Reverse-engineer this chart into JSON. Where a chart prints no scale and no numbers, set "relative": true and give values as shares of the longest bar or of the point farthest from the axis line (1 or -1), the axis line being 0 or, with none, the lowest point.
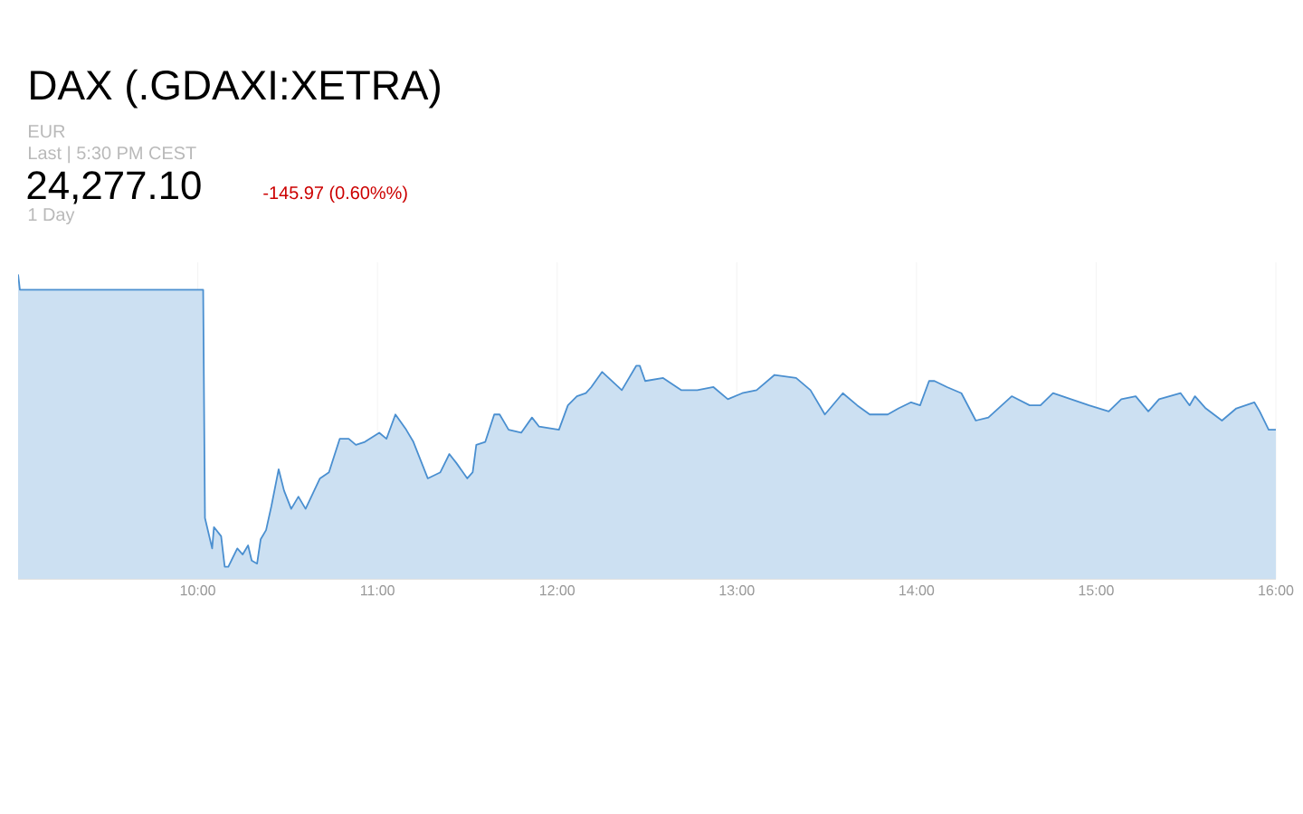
{
  "chart_data": {
    "type": "area",
    "title": "DAX (.GDAXI:XETRA)",
    "annotations": [
      "EUR",
      "Last | 5:30 PM CEST",
      "24,277.10",
      "-145.97 (0.60%%)",
      "1 Day"
    ],
    "relative": true,
    "color": "#4a8fd0",
    "grid": "x",
    "xlim": [
      9,
      16
    ],
    "xticks": [
      {
        "value": 10,
        "label": "10:00"
      },
      {
        "value": 11,
        "label": "11:00"
      },
      {
        "value": 12,
        "label": "12:00"
      },
      {
        "value": 13,
        "label": "13:00"
      },
      {
        "value": 14,
        "label": "14:00"
      },
      {
        "value": 15,
        "label": "15:00"
      },
      {
        "value": 16,
        "label": "16:00"
      }
    ],
    "x": [
      9.0,
      9.01,
      10.03,
      10.04,
      10.08,
      10.09,
      10.13,
      10.15,
      10.17,
      10.22,
      10.25,
      10.28,
      10.3,
      10.33,
      10.35,
      10.38,
      10.41,
      10.45,
      10.48,
      10.52,
      10.56,
      10.6,
      10.68,
      10.73,
      10.79,
      10.84,
      10.88,
      10.93,
      11.01,
      11.05,
      11.1,
      11.16,
      11.2,
      11.28,
      11.35,
      11.4,
      11.44,
      11.5,
      11.53,
      11.55,
      11.6,
      11.65,
      11.68,
      11.73,
      11.8,
      11.86,
      11.9,
      12.01,
      12.06,
      12.11,
      12.16,
      12.19,
      12.25,
      12.36,
      12.44,
      12.46,
      12.49,
      12.59,
      12.69,
      12.78,
      12.87,
      12.95,
      13.03,
      13.11,
      13.21,
      13.33,
      13.41,
      13.49,
      13.59,
      13.67,
      13.74,
      13.84,
      13.9,
      13.97,
      14.02,
      14.07,
      14.1,
      14.17,
      14.25,
      14.33,
      14.4,
      14.53,
      14.63,
      14.69,
      14.76,
      14.86,
      14.96,
      15.07,
      15.14,
      15.22,
      15.29,
      15.35,
      15.47,
      15.52,
      15.55,
      15.61,
      15.7,
      15.78,
      15.88,
      15.91,
      15.96,
      16.0
    ],
    "values": [
      1.0,
      0.95,
      0.95,
      0.2,
      0.1,
      0.17,
      0.14,
      0.04,
      0.04,
      0.1,
      0.08,
      0.11,
      0.06,
      0.05,
      0.13,
      0.16,
      0.24,
      0.36,
      0.29,
      0.23,
      0.27,
      0.23,
      0.33,
      0.35,
      0.46,
      0.46,
      0.44,
      0.45,
      0.48,
      0.46,
      0.54,
      0.49,
      0.45,
      0.33,
      0.35,
      0.41,
      0.38,
      0.33,
      0.35,
      0.44,
      0.45,
      0.54,
      0.54,
      0.49,
      0.48,
      0.53,
      0.5,
      0.49,
      0.57,
      0.6,
      0.61,
      0.63,
      0.68,
      0.62,
      0.7,
      0.7,
      0.65,
      0.66,
      0.62,
      0.62,
      0.63,
      0.59,
      0.61,
      0.62,
      0.67,
      0.66,
      0.62,
      0.54,
      0.61,
      0.57,
      0.54,
      0.54,
      0.56,
      0.58,
      0.57,
      0.65,
      0.65,
      0.63,
      0.61,
      0.52,
      0.53,
      0.6,
      0.57,
      0.57,
      0.61,
      0.59,
      0.57,
      0.55,
      0.59,
      0.6,
      0.55,
      0.59,
      0.61,
      0.57,
      0.6,
      0.56,
      0.52,
      0.56,
      0.58,
      0.55,
      0.49,
      0.49
    ]
  }
}
